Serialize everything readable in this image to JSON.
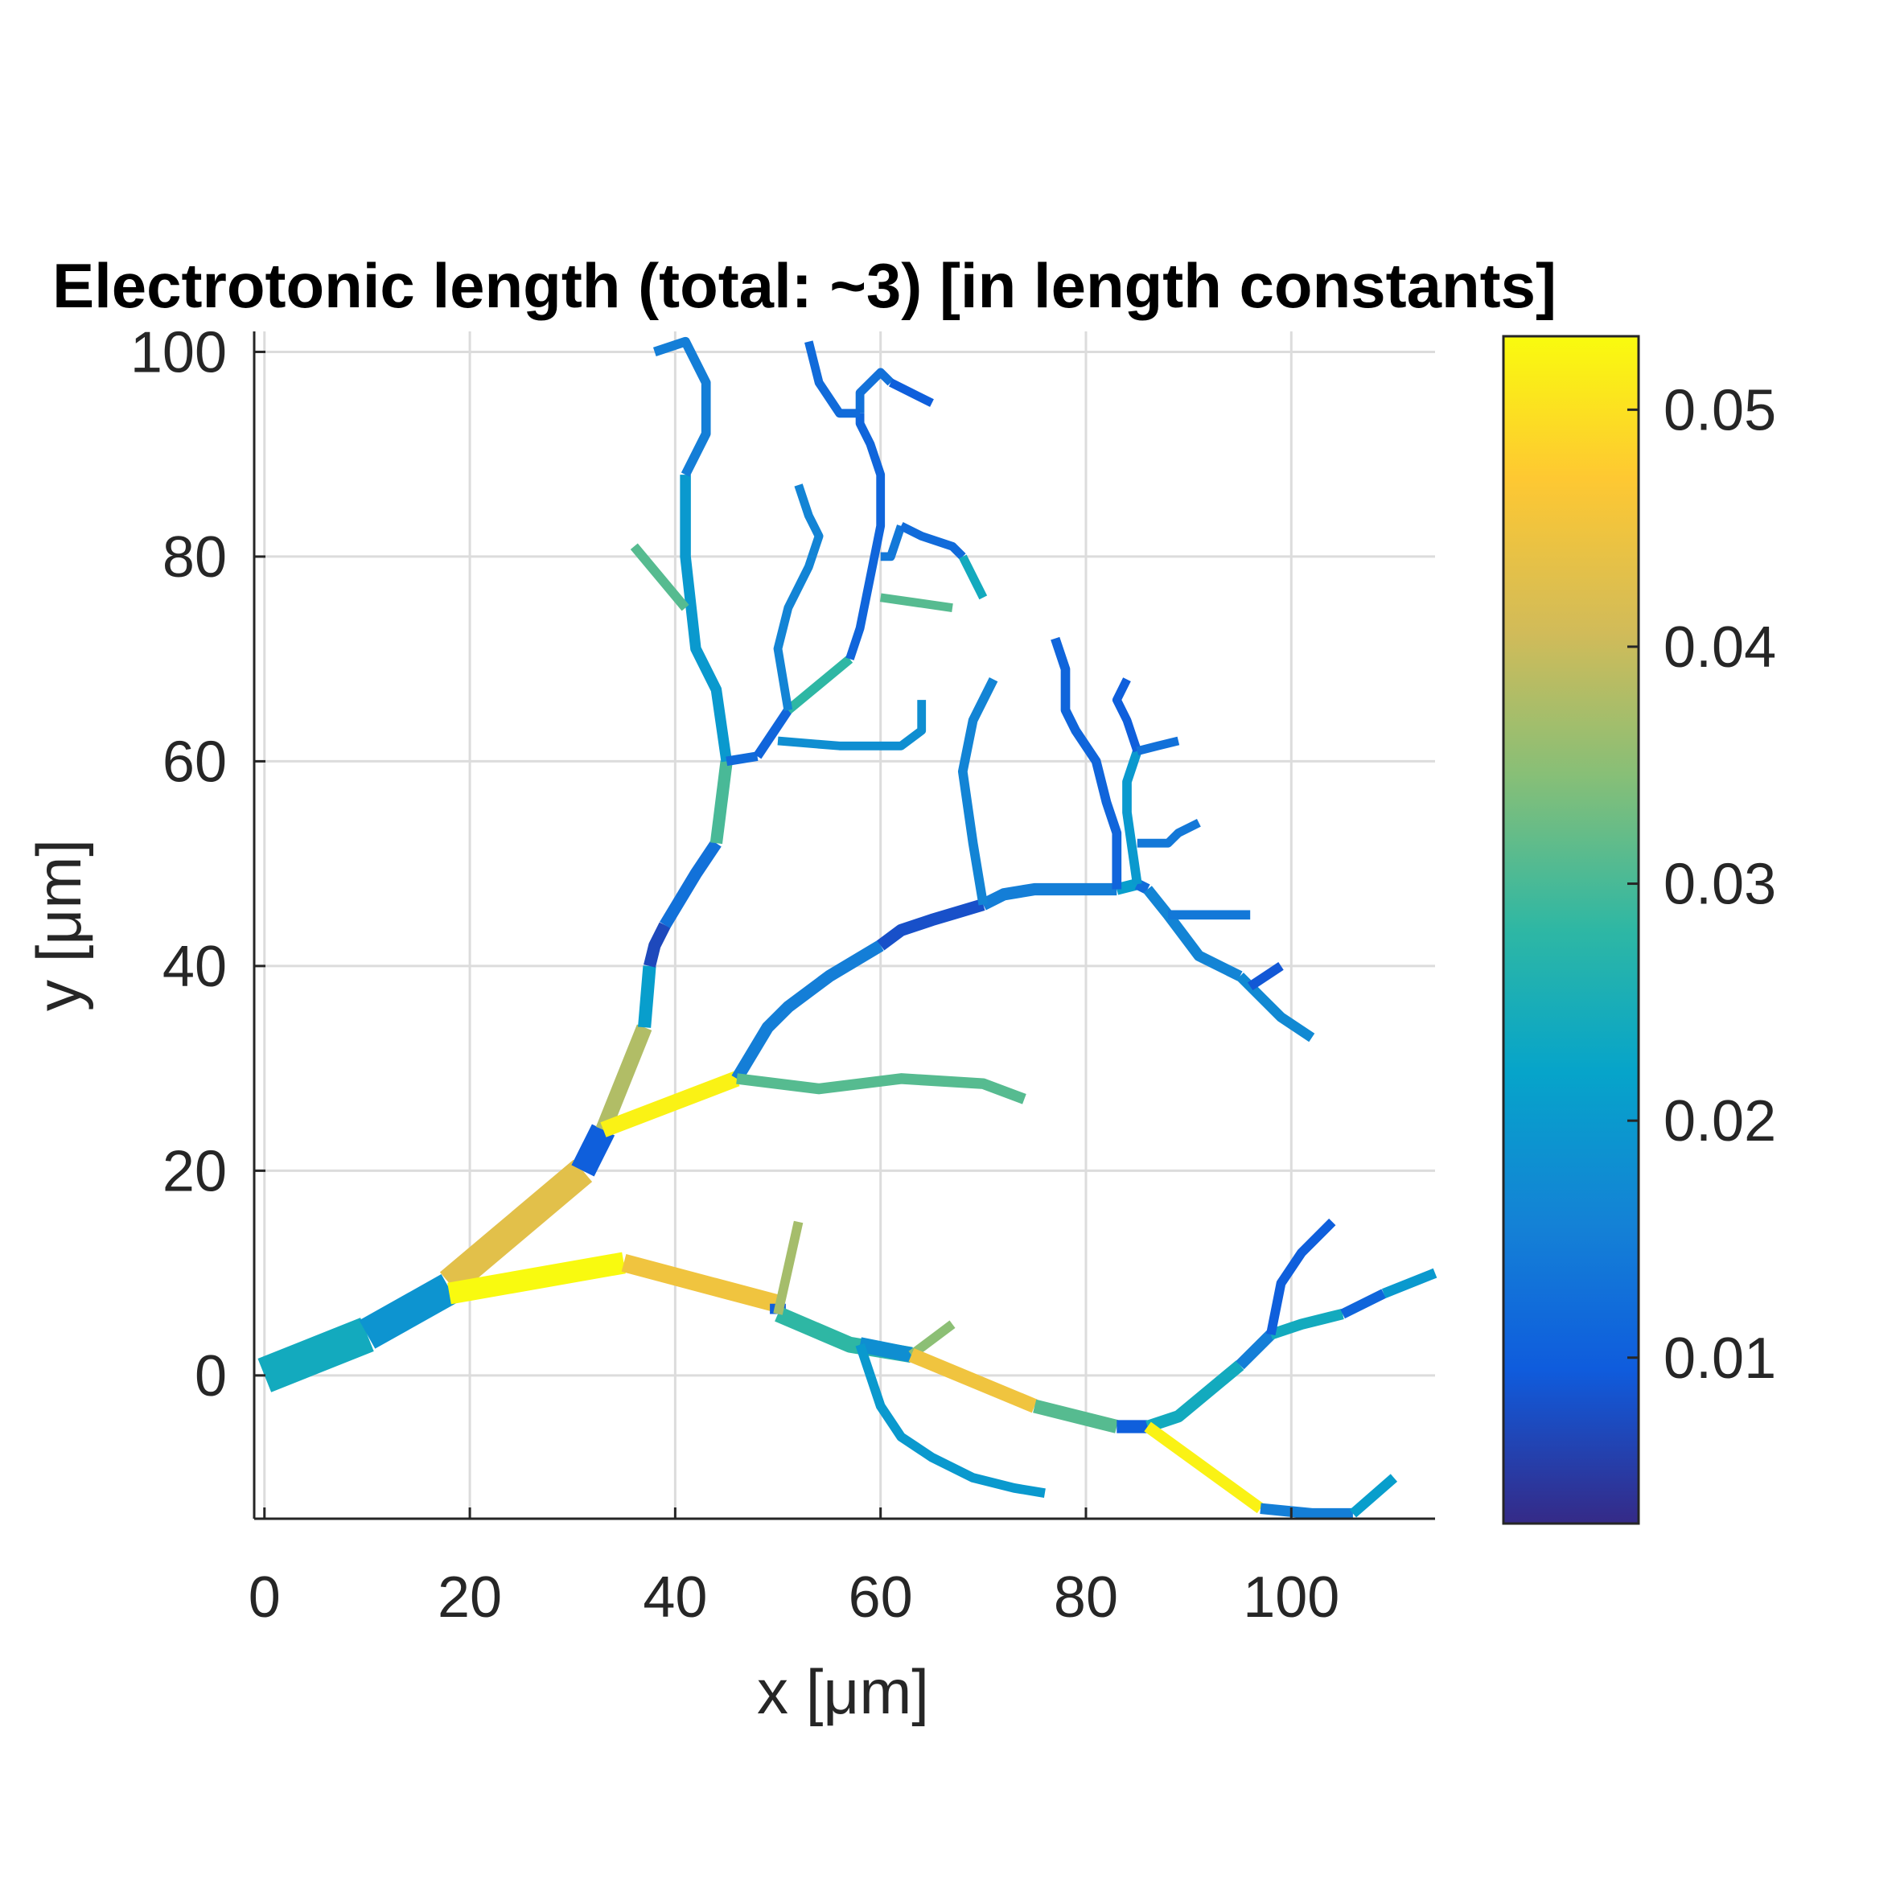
{
  "chart_data": {
    "type": "line",
    "title": "Electrotonic length (total: ~3) [in length constants]",
    "xlabel": "x [μm]",
    "ylabel": "y [μm]",
    "xlim": [
      -1,
      114
    ],
    "ylim": [
      -14,
      102
    ],
    "xticks": [
      0,
      20,
      40,
      60,
      80,
      100
    ],
    "yticks": [
      0,
      20,
      40,
      60,
      80,
      100
    ],
    "grid": true,
    "colorbar": {
      "colormap": "parula",
      "limits": [
        0.003,
        0.0531
      ],
      "ticks": [
        0.01,
        0.02,
        0.03,
        0.04,
        0.05
      ],
      "tick_labels": [
        "0.01",
        "0.02",
        "0.03",
        "0.04",
        "0.05"
      ]
    },
    "segments": [
      {
        "points": [
          [
            0,
            0
          ],
          [
            10,
            4
          ]
        ],
        "value": 0.024,
        "width": 5
      },
      {
        "points": [
          [
            10,
            4
          ],
          [
            18,
            8.5
          ]
        ],
        "value": 0.019,
        "width": 4.5
      },
      {
        "points": [
          [
            18,
            9
          ],
          [
            31,
            20
          ]
        ],
        "value": 0.043,
        "width": 4
      },
      {
        "points": [
          [
            31,
            20
          ],
          [
            33,
            24
          ]
        ],
        "value": 0.01,
        "width": 3.5
      },
      {
        "points": [
          [
            33,
            24
          ],
          [
            37,
            34
          ]
        ],
        "value": 0.038,
        "width": 2.2
      },
      {
        "points": [
          [
            37,
            34
          ],
          [
            37.5,
            40
          ]
        ],
        "value": 0.021,
        "width": 1.8
      },
      {
        "points": [
          [
            37.5,
            40
          ],
          [
            38,
            42
          ],
          [
            39,
            44
          ]
        ],
        "value": 0.007,
        "width": 1.7
      },
      {
        "points": [
          [
            39,
            44
          ],
          [
            42,
            49
          ],
          [
            44,
            52
          ]
        ],
        "value": 0.013,
        "width": 1.7
      },
      {
        "points": [
          [
            44,
            52
          ],
          [
            45,
            60
          ]
        ],
        "value": 0.03,
        "width": 1.7
      },
      {
        "points": [
          [
            45,
            60
          ],
          [
            44,
            67
          ],
          [
            42,
            71
          ],
          [
            41,
            80
          ],
          [
            41,
            88
          ]
        ],
        "value": 0.02,
        "width": 1.5
      },
      {
        "points": [
          [
            41,
            88
          ],
          [
            43,
            92
          ],
          [
            43,
            97
          ],
          [
            41,
            101
          ],
          [
            38,
            100
          ]
        ],
        "value": 0.015,
        "width": 1.3
      },
      {
        "points": [
          [
            41,
            75
          ],
          [
            36,
            81
          ]
        ],
        "value": 0.031,
        "width": 1.3
      },
      {
        "points": [
          [
            45,
            60
          ],
          [
            48,
            60.5
          ]
        ],
        "value": 0.012,
        "width": 1.3
      },
      {
        "points": [
          [
            48,
            60.5
          ],
          [
            51,
            65
          ]
        ],
        "value": 0.011,
        "width": 1.3
      },
      {
        "points": [
          [
            51,
            65
          ],
          [
            57,
            70
          ]
        ],
        "value": 0.028,
        "width": 1.3
      },
      {
        "points": [
          [
            57,
            70
          ],
          [
            58,
            73
          ],
          [
            59,
            78
          ],
          [
            60,
            83
          ],
          [
            60,
            88
          ],
          [
            59,
            91
          ],
          [
            58,
            93
          ],
          [
            58,
            94
          ]
        ],
        "value": 0.011,
        "width": 1.2
      },
      {
        "points": [
          [
            58,
            94
          ],
          [
            58,
            96
          ],
          [
            60,
            98
          ],
          [
            61,
            97
          ]
        ],
        "value": 0.013,
        "width": 1.2
      },
      {
        "points": [
          [
            61,
            97
          ],
          [
            65,
            95
          ]
        ],
        "value": 0.01,
        "width": 1.2
      },
      {
        "points": [
          [
            58,
            94
          ],
          [
            56,
            94
          ],
          [
            54,
            97
          ],
          [
            53,
            101
          ]
        ],
        "value": 0.012,
        "width": 1.2
      },
      {
        "points": [
          [
            51,
            65
          ],
          [
            50,
            71
          ],
          [
            51,
            75
          ],
          [
            53,
            79
          ],
          [
            54,
            82
          ],
          [
            53,
            84
          ],
          [
            52,
            87
          ]
        ],
        "value": 0.016,
        "width": 1.2
      },
      {
        "points": [
          [
            50,
            62
          ],
          [
            56,
            61.5
          ],
          [
            62,
            61.5
          ],
          [
            64,
            63
          ],
          [
            64,
            66
          ]
        ],
        "value": 0.018,
        "width": 1.2
      },
      {
        "points": [
          [
            60,
            80
          ],
          [
            61,
            80
          ],
          [
            62,
            83
          ]
        ],
        "value": 0.014,
        "width": 1.2
      },
      {
        "points": [
          [
            62,
            83
          ],
          [
            64,
            82
          ],
          [
            67,
            81
          ],
          [
            68,
            80
          ]
        ],
        "value": 0.012,
        "width": 1.2
      },
      {
        "points": [
          [
            68,
            80
          ],
          [
            70,
            76
          ]
        ],
        "value": 0.024,
        "width": 1.2
      },
      {
        "points": [
          [
            60,
            76
          ],
          [
            67,
            75
          ]
        ],
        "value": 0.031,
        "width": 1.2
      },
      {
        "points": [
          [
            33,
            24
          ],
          [
            46,
            29
          ]
        ],
        "value": 0.052,
        "width": 2.2
      },
      {
        "points": [
          [
            46,
            29
          ],
          [
            49,
            34
          ],
          [
            51,
            36
          ],
          [
            55,
            39
          ],
          [
            60,
            42
          ]
        ],
        "value": 0.015,
        "width": 1.7
      },
      {
        "points": [
          [
            60,
            42
          ],
          [
            62,
            43.5
          ],
          [
            65,
            44.5
          ],
          [
            70,
            46
          ]
        ],
        "value": 0.008,
        "width": 1.7
      },
      {
        "points": [
          [
            70,
            46
          ],
          [
            72,
            47
          ],
          [
            75,
            47.5
          ],
          [
            80,
            47.5
          ],
          [
            83,
            47.5
          ]
        ],
        "value": 0.015,
        "width": 1.7
      },
      {
        "points": [
          [
            83,
            47.5
          ],
          [
            85,
            48
          ]
        ],
        "value": 0.021,
        "width": 1.6
      },
      {
        "points": [
          [
            85,
            48
          ],
          [
            86,
            47.5
          ]
        ],
        "value": 0.012,
        "width": 1.5
      },
      {
        "points": [
          [
            86,
            47.5
          ],
          [
            88,
            45
          ],
          [
            91,
            41
          ],
          [
            95,
            39
          ]
        ],
        "value": 0.016,
        "width": 1.5
      },
      {
        "points": [
          [
            95,
            39
          ],
          [
            97,
            37
          ],
          [
            99,
            35
          ],
          [
            102,
            33
          ]
        ],
        "value": 0.017,
        "width": 1.4
      },
      {
        "points": [
          [
            96,
            38
          ],
          [
            99,
            40
          ]
        ],
        "value": 0.009,
        "width": 1.3
      },
      {
        "points": [
          [
            88,
            45
          ],
          [
            91,
            45
          ],
          [
            96,
            45
          ]
        ],
        "value": 0.014,
        "width": 1.3
      },
      {
        "points": [
          [
            85,
            48
          ],
          [
            84,
            55
          ],
          [
            84,
            58
          ],
          [
            85,
            61
          ]
        ],
        "value": 0.02,
        "width": 1.3
      },
      {
        "points": [
          [
            85,
            61
          ],
          [
            84,
            64
          ],
          [
            83,
            66
          ],
          [
            84,
            68
          ]
        ],
        "value": 0.01,
        "width": 1.2
      },
      {
        "points": [
          [
            85,
            61
          ],
          [
            87,
            61.5
          ],
          [
            89,
            62
          ]
        ],
        "value": 0.013,
        "width": 1.2
      },
      {
        "points": [
          [
            85,
            52
          ],
          [
            88,
            52
          ],
          [
            89,
            53
          ],
          [
            91,
            54
          ]
        ],
        "value": 0.014,
        "width": 1.2
      },
      {
        "points": [
          [
            83,
            47.5
          ],
          [
            83,
            53
          ],
          [
            82,
            56
          ],
          [
            81,
            60
          ],
          [
            79,
            63
          ],
          [
            78,
            65
          ],
          [
            78,
            69
          ],
          [
            77,
            72
          ]
        ],
        "value": 0.011,
        "width": 1.3
      },
      {
        "points": [
          [
            70,
            46
          ],
          [
            69,
            52
          ],
          [
            68,
            59
          ],
          [
            69,
            64
          ],
          [
            71,
            68
          ]
        ],
        "value": 0.016,
        "width": 1.3
      },
      {
        "points": [
          [
            46,
            29
          ],
          [
            54,
            28
          ],
          [
            62,
            29
          ],
          [
            70,
            28.5
          ],
          [
            74,
            27
          ]
        ],
        "value": 0.031,
        "width": 1.5
      },
      {
        "points": [
          [
            18,
            8
          ],
          [
            35,
            11
          ]
        ],
        "value": 0.053,
        "width": 3
      },
      {
        "points": [
          [
            35,
            11
          ],
          [
            50,
            7
          ]
        ],
        "value": 0.045,
        "width": 2.5
      },
      {
        "points": [
          [
            50,
            7
          ],
          [
            50,
            6
          ]
        ],
        "value": 0.01,
        "width": 2.2
      },
      {
        "points": [
          [
            50,
            6
          ],
          [
            57,
            3
          ],
          [
            63,
            2
          ]
        ],
        "value": 0.028,
        "width": 2.2
      },
      {
        "points": [
          [
            58,
            3
          ],
          [
            63,
            2
          ]
        ],
        "value": 0.018,
        "width": 2.1
      },
      {
        "points": [
          [
            50,
            6
          ],
          [
            52,
            15
          ]
        ],
        "value": 0.037,
        "width": 1.3
      },
      {
        "points": [
          [
            63,
            2
          ],
          [
            67,
            5
          ]
        ],
        "value": 0.035,
        "width": 1.3
      },
      {
        "points": [
          [
            58,
            3
          ],
          [
            60,
            -3
          ],
          [
            62,
            -6
          ],
          [
            65,
            -8
          ],
          [
            69,
            -10
          ],
          [
            73,
            -11
          ],
          [
            76,
            -11.5
          ]
        ],
        "value": 0.02,
        "width": 1.3
      },
      {
        "points": [
          [
            63,
            2
          ],
          [
            75,
            -3
          ]
        ],
        "value": 0.045,
        "width": 2.0
      },
      {
        "points": [
          [
            75,
            -3
          ],
          [
            83,
            -5
          ]
        ],
        "value": 0.031,
        "width": 1.9
      },
      {
        "points": [
          [
            83,
            -5
          ],
          [
            86,
            -5
          ]
        ],
        "value": 0.01,
        "width": 1.8
      },
      {
        "points": [
          [
            86,
            -5
          ],
          [
            89,
            -4
          ],
          [
            95,
            1
          ]
        ],
        "value": 0.024,
        "width": 1.7
      },
      {
        "points": [
          [
            95,
            1
          ],
          [
            98,
            4
          ]
        ],
        "value": 0.015,
        "width": 1.6
      },
      {
        "points": [
          [
            98,
            4
          ],
          [
            101,
            5
          ],
          [
            105,
            6
          ]
        ],
        "value": 0.024,
        "width": 1.5
      },
      {
        "points": [
          [
            105,
            6
          ],
          [
            109,
            8
          ]
        ],
        "value": 0.011,
        "width": 1.4
      },
      {
        "points": [
          [
            109,
            8
          ],
          [
            114,
            10
          ]
        ],
        "value": 0.02,
        "width": 1.4
      },
      {
        "points": [
          [
            98,
            4
          ],
          [
            99,
            9
          ],
          [
            101,
            12
          ],
          [
            104,
            15
          ]
        ],
        "value": 0.01,
        "width": 1.3
      },
      {
        "points": [
          [
            86,
            -5
          ],
          [
            97,
            -13
          ]
        ],
        "value": 0.052,
        "width": 1.6
      },
      {
        "points": [
          [
            97,
            -13
          ],
          [
            102,
            -13.5
          ],
          [
            106,
            -13.5
          ]
        ],
        "value": 0.015,
        "width": 1.5
      },
      {
        "points": [
          [
            106,
            -13.5
          ],
          [
            110,
            -10
          ]
        ],
        "value": 0.021,
        "width": 1.4
      }
    ]
  }
}
